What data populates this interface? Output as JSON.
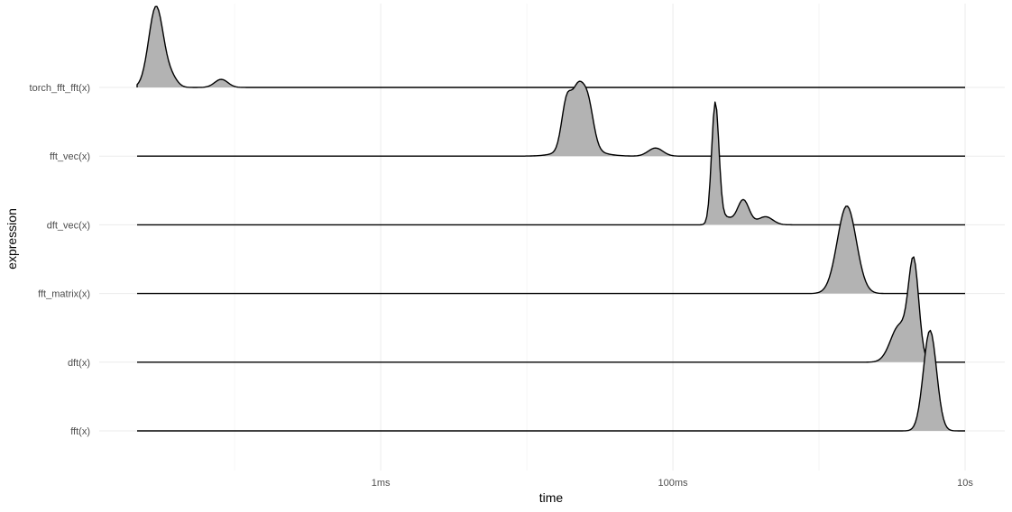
{
  "chart_data": {
    "type": "ridgeline",
    "xlabel": "time",
    "ylabel": "expression",
    "x_scale": "log10",
    "x_unit": "seconds",
    "xlim": [
      2.15e-05,
      10
    ],
    "x_ticks": [
      {
        "value": 0.001,
        "label": "1ms"
      },
      {
        "value": 0.1,
        "label": "100ms"
      },
      {
        "value": 10,
        "label": "10s"
      }
    ],
    "grid": true,
    "fill_color": "#b3b3b3",
    "categories": [
      "fft(x)",
      "dft(x)",
      "fft_matrix(x)",
      "dft_vec(x)",
      "fft_vec(x)",
      "torch_fft_fft(x)"
    ],
    "series": [
      {
        "name": "torch_fft_fft(x)",
        "peaks": [
          {
            "x": 2.9e-05,
            "h": 1.0,
            "w": 0.05
          },
          {
            "x": 3.7e-05,
            "h": 0.11,
            "w": 0.04
          },
          {
            "x": 8.1e-05,
            "h": 0.1,
            "w": 0.045
          }
        ]
      },
      {
        "name": "fft_vec(x)",
        "peaks": [
          {
            "x": 0.0188,
            "h": 0.62,
            "w": 0.035
          },
          {
            "x": 0.0222,
            "h": 0.58,
            "w": 0.035
          },
          {
            "x": 0.0259,
            "h": 0.62,
            "w": 0.04
          },
          {
            "x": 0.023,
            "h": 0.1,
            "w": 0.12
          },
          {
            "x": 0.076,
            "h": 0.1,
            "w": 0.05
          }
        ]
      },
      {
        "name": "dft_vec(x)",
        "peaks": [
          {
            "x": 0.195,
            "h": 1.5,
            "w": 0.025
          },
          {
            "x": 0.23,
            "h": 0.09,
            "w": 0.04
          },
          {
            "x": 0.303,
            "h": 0.31,
            "w": 0.04
          },
          {
            "x": 0.43,
            "h": 0.1,
            "w": 0.05
          }
        ]
      },
      {
        "name": "fft_matrix(x)",
        "peaks": [
          {
            "x": 1.55,
            "h": 1.08,
            "w": 0.065
          }
        ]
      },
      {
        "name": "dft(x)",
        "peaks": [
          {
            "x": 4.45,
            "h": 1.18,
            "w": 0.035
          },
          {
            "x": 3.55,
            "h": 0.45,
            "w": 0.06
          }
        ]
      },
      {
        "name": "fft(x)",
        "peaks": [
          {
            "x": 5.75,
            "h": 1.24,
            "w": 0.045
          }
        ]
      }
    ]
  }
}
